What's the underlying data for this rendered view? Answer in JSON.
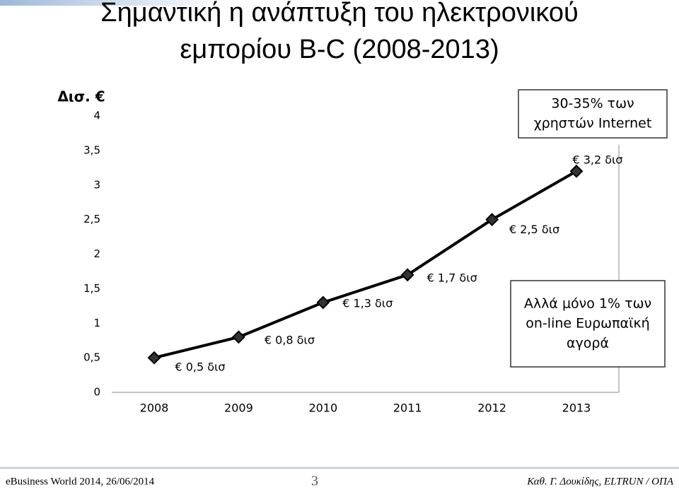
{
  "chart_data": {
    "type": "line",
    "title": [
      "Σημαντική η ανάπτυξη του ηλεκτρονικού",
      "εμπορίου B-C (2008-2013)"
    ],
    "y_label": "Δισ. €",
    "categories": [
      "2008",
      "2009",
      "2010",
      "2011",
      "2012",
      "2013"
    ],
    "values": [
      0.5,
      0.8,
      1.3,
      1.7,
      2.5,
      3.2
    ],
    "value_labels": [
      "€ 0,5 δισ",
      "€ 0,8 δισ",
      "€ 1,3 δισ",
      "€ 1,7 δισ",
      "€ 2,5 δισ",
      "€ 3,2 δισ"
    ],
    "color": "#000000",
    "ylim": [
      0,
      4
    ],
    "yticks": [
      0,
      {
        "value": 0.5,
        "label": "0,5"
      },
      1,
      {
        "value": 1.5,
        "label": "1,5"
      },
      2,
      {
        "value": 2.5,
        "label": "2,5"
      },
      3,
      {
        "value": 3.5,
        "label": "3,5"
      },
      4
    ],
    "annotations": [
      [
        "30-35% των",
        "χρηστών Internet"
      ],
      [
        "Αλλά μόνο 1% των",
        "on-line Ευρωπαϊκή",
        "αγορά"
      ]
    ]
  },
  "footer": {
    "left": "eBusiness World 2014, 26/06/2014",
    "page": "3",
    "right": "Καθ. Γ. Δουκίδης, ELTRUN / ΟΠΑ"
  }
}
